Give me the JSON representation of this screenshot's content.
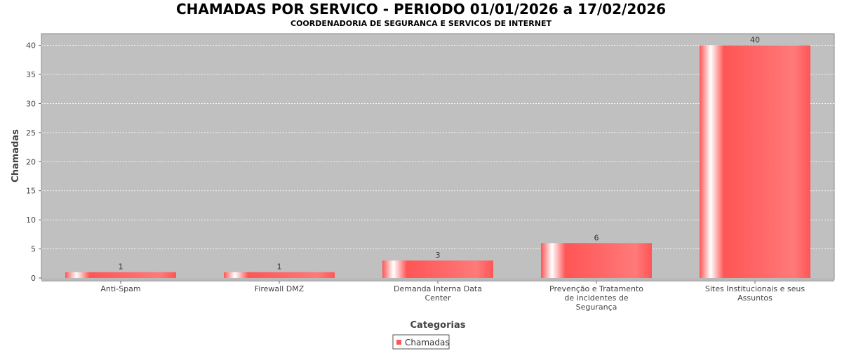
{
  "chart_data": {
    "type": "bar",
    "title": "CHAMADAS POR SERVICO - PERIODO 01/01/2026 a 17/02/2026",
    "subtitle": "COORDENADORIA DE SEGURANCA E SERVICOS DE INTERNET",
    "xlabel": "Categorias",
    "ylabel": "Chamadas",
    "categories": [
      [
        "Anti-Spam"
      ],
      [
        "Firewall DMZ"
      ],
      [
        "Demanda Interna Data",
        "Center"
      ],
      [
        "Prevenção e Tratamento",
        "de incidentes de",
        "Segurança"
      ],
      [
        "Sites Institucionais e seus",
        "Assuntos"
      ]
    ],
    "series": [
      {
        "name": "Chamadas",
        "values": [
          1,
          1,
          3,
          6,
          40
        ],
        "color": "#ff5555"
      }
    ],
    "ylim": [
      0,
      42
    ],
    "yticks": [
      0,
      5,
      10,
      15,
      20,
      25,
      30,
      35,
      40
    ],
    "grid": true,
    "plot_background": "#c0c0c0",
    "legend_position": "bottom-center"
  }
}
